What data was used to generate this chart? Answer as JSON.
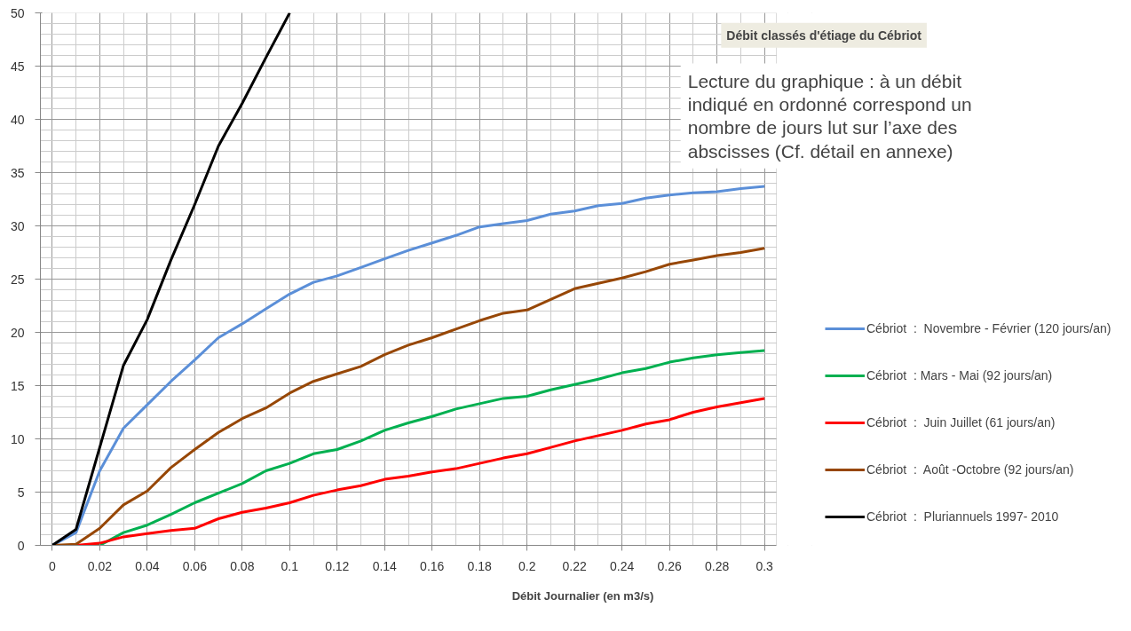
{
  "chart_data": {
    "type": "line",
    "title": "Débit classés d'étiage du Cébriot",
    "xlabel": "Débit Journalier (en m3/s)",
    "annotations": [
      "Lecture du graphique : à un débit indiqué en ordonné correspond un nombre de jours lut sur l’axe des abscisses (Cf. détail en annexe)"
    ],
    "x": [
      0,
      0.01,
      0.02,
      0.03,
      0.04,
      0.05,
      0.06,
      0.07,
      0.08,
      0.09,
      0.1,
      0.11,
      0.12,
      0.13,
      0.14,
      0.15,
      0.16,
      0.17,
      0.18,
      0.19,
      0.2,
      0.21,
      0.22,
      0.23,
      0.24,
      0.25,
      0.26,
      0.27,
      0.28,
      0.29,
      0.3
    ],
    "series": [
      {
        "name": "Cébriot  :  Novembre - Février (120 jours/an)",
        "color": "#5b8fd8",
        "values": [
          0,
          1.2,
          7,
          11,
          13.2,
          15.4,
          17.4,
          19.5,
          20.8,
          22.2,
          23.6,
          24.7,
          25.3,
          26.1,
          26.9,
          27.7,
          28.4,
          29.1,
          29.9,
          30.2,
          30.5,
          31.1,
          31.4,
          31.9,
          32.1,
          32.6,
          32.9,
          33.1,
          33.2,
          33.5,
          33.7
        ]
      },
      {
        "name": "Cébriot  : Mars - Mai (92 jours/an)",
        "color": "#00b050",
        "values": [
          0,
          0,
          0,
          1.2,
          1.9,
          2.9,
          4,
          4.9,
          5.8,
          7,
          7.7,
          8.6,
          9,
          9.8,
          10.8,
          11.5,
          12.1,
          12.8,
          13.3,
          13.8,
          14,
          14.6,
          15.1,
          15.6,
          16.2,
          16.6,
          17.2,
          17.6,
          17.9,
          18.1,
          18.3
        ]
      },
      {
        "name": "Cébriot  :  Juin Juillet (61 jours/an)",
        "color": "#ff0000",
        "values": [
          0,
          0,
          0.2,
          0.8,
          1.1,
          1.4,
          1.6,
          2.5,
          3.1,
          3.5,
          4,
          4.7,
          5.2,
          5.6,
          6.2,
          6.5,
          6.9,
          7.2,
          7.7,
          8.2,
          8.6,
          9.2,
          9.8,
          10.3,
          10.8,
          11.4,
          11.8,
          12.5,
          13,
          13.4,
          13.8
        ]
      },
      {
        "name": "Cébriot  :  Août -Octobre (92 jours/an)",
        "color": "#974706",
        "values": [
          0,
          0.1,
          1.6,
          3.8,
          5.1,
          7.3,
          9,
          10.6,
          11.9,
          12.9,
          14.3,
          15.4,
          16.1,
          16.8,
          17.9,
          18.8,
          19.5,
          20.3,
          21.1,
          21.8,
          22.1,
          23.1,
          24.1,
          24.6,
          25.1,
          25.7,
          26.4,
          26.8,
          27.2,
          27.5,
          27.9
        ]
      },
      {
        "name": "Cébriot  :  Pluriannuels 1997- 2010",
        "color": "#000000",
        "x": [
          0,
          0.01,
          0.02,
          0.03,
          0.04,
          0.05,
          0.06,
          0.07,
          0.08,
          0.09,
          0.1
        ],
        "values": [
          0,
          1.5,
          9.2,
          16.9,
          21.2,
          26.8,
          32,
          37.5,
          41.5,
          45.8,
          50
        ]
      }
    ],
    "xlim": [
      -0.005,
      0.305
    ],
    "ylim": [
      0,
      50
    ],
    "xticks": [
      0,
      0.02,
      0.04,
      0.06,
      0.08,
      0.1,
      0.12,
      0.14,
      0.16,
      0.18,
      0.2,
      0.22,
      0.24,
      0.26,
      0.28,
      0.3
    ],
    "yticks": [
      0,
      5,
      10,
      15,
      20,
      25,
      30,
      35,
      40,
      45,
      50
    ],
    "grid": true,
    "legend": "right",
    "marker": "none",
    "line_style": "solid"
  }
}
